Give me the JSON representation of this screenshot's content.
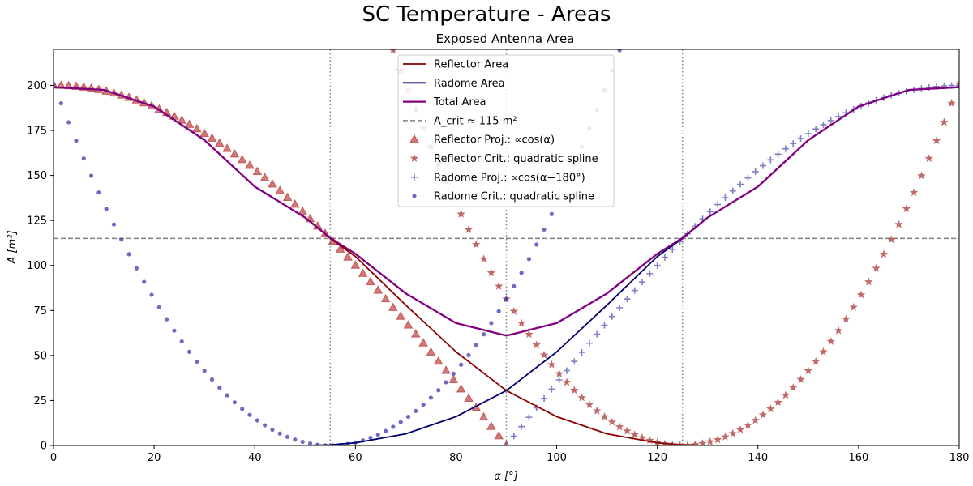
{
  "figure_title": "SC Temperature - Areas",
  "chart_data": {
    "type": "line",
    "title": "Exposed Antenna Area",
    "xlabel": "α [°]",
    "ylabel": "A [m²]",
    "xlim": [
      0,
      180
    ],
    "ylim": [
      0,
      220
    ],
    "xticks": [
      "0",
      "20",
      "40",
      "60",
      "80",
      "100",
      "120",
      "140",
      "160",
      "180"
    ],
    "yticks": [
      "0",
      "25",
      "50",
      "75",
      "100",
      "125",
      "150",
      "175",
      "200"
    ],
    "grid": false,
    "legend_position": "top-center",
    "vlines": [
      55,
      90,
      125
    ],
    "hline": 115,
    "series": [
      {
        "name": "Reflector Area",
        "kind": "line",
        "color": "#8b0000",
        "style": "solid",
        "x": [
          0,
          10,
          20,
          30,
          40,
          50,
          55,
          60,
          70,
          80,
          90,
          100,
          110,
          120,
          125,
          130,
          140,
          150,
          160,
          170,
          180
        ],
        "y": [
          199.0,
          197.5,
          188.3,
          169.6,
          143.8,
          126.6,
          115.0,
          105.0,
          78.0,
          52.0,
          30.5,
          16.0,
          6.5,
          1.5,
          0.3,
          0,
          0,
          0,
          0,
          0,
          0
        ]
      },
      {
        "name": "Radome Area",
        "kind": "line",
        "color": "#00006e",
        "style": "solid",
        "x": [
          0,
          10,
          20,
          30,
          40,
          50,
          55,
          60,
          70,
          80,
          90,
          100,
          110,
          120,
          125,
          130,
          140,
          150,
          160,
          170,
          180
        ],
        "y": [
          0,
          0,
          0,
          0,
          0,
          0,
          0.3,
          1.5,
          6.5,
          16.0,
          30.5,
          52.0,
          78.0,
          105.0,
          115.0,
          126.6,
          143.8,
          169.6,
          188.3,
          197.5,
          199.0
        ]
      },
      {
        "name": "Total Area",
        "kind": "line",
        "color": "#800080",
        "style": "solid",
        "x": [
          0,
          10,
          20,
          30,
          40,
          50,
          55,
          60,
          70,
          80,
          90,
          100,
          110,
          120,
          125,
          130,
          140,
          150,
          160,
          170,
          180
        ],
        "y": [
          199.0,
          197.5,
          188.3,
          169.6,
          143.8,
          126.6,
          115.3,
          106.5,
          84.5,
          68.0,
          61.0,
          68.0,
          84.5,
          106.5,
          115.3,
          126.6,
          143.8,
          169.6,
          188.3,
          197.5,
          199.0
        ]
      },
      {
        "name": "A_crit ≈ 115 m²",
        "kind": "hline",
        "color": "#808080",
        "style": "dashed",
        "value": 115
      },
      {
        "name": "Reflector Proj.: ∝cos(α)",
        "kind": "scatter",
        "marker": "triangle",
        "color": "#b22222",
        "formula": "200*cos(alpha)",
        "x_range": [
          0,
          90
        ]
      },
      {
        "name": "Reflector Crit.: quadratic spline",
        "kind": "scatter",
        "marker": "star",
        "color": "#a52a2a",
        "formula": "0.0664*(alpha-125)^2",
        "x_range": [
          0,
          180
        ]
      },
      {
        "name": "Radome Proj.: ∝cos(α−180°)",
        "kind": "scatter",
        "marker": "plus",
        "color": "#5b5fb5",
        "formula": "-200*cos(alpha)",
        "x_range": [
          90,
          180
        ]
      },
      {
        "name": "Radome Crit.: quadratic spline",
        "kind": "scatter",
        "marker": "circle",
        "color": "#3a3ab0",
        "formula": "0.0664*(alpha-55)^2",
        "x_range": [
          0,
          180
        ]
      }
    ]
  }
}
